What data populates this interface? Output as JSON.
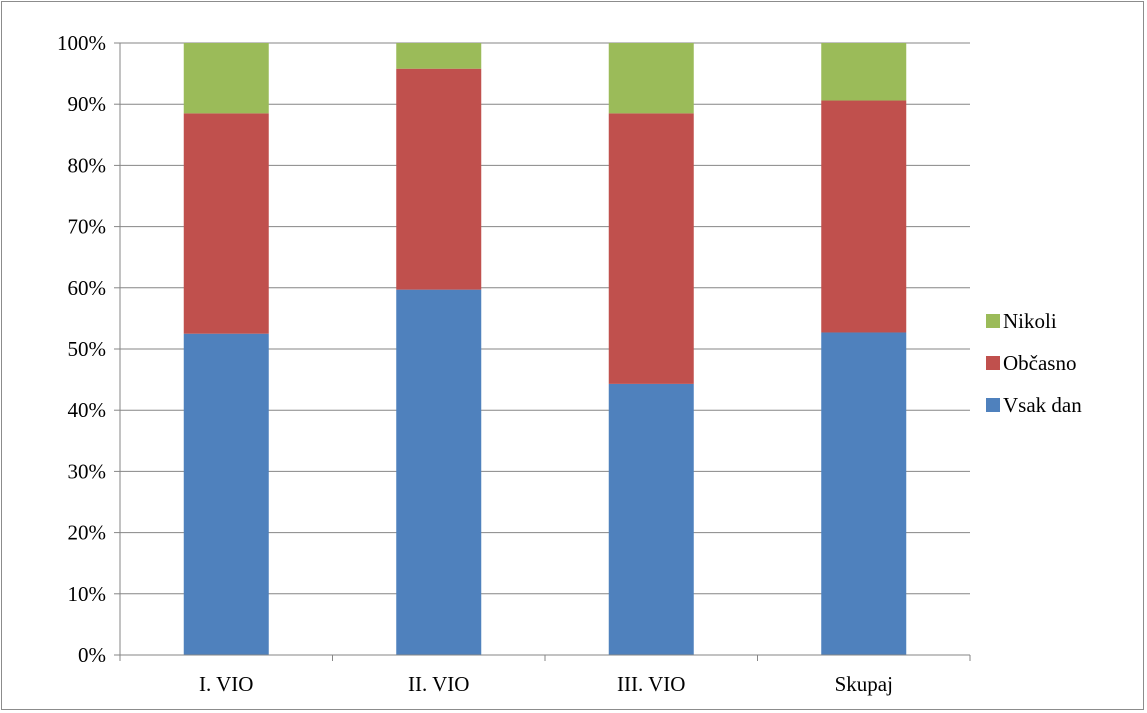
{
  "chart_data": {
    "type": "bar",
    "stacked": true,
    "percent_stacked": true,
    "categories": [
      "I. VIO",
      "II. VIO",
      "III. VIO",
      "Skupaj"
    ],
    "series": [
      {
        "name": "Vsak dan",
        "color": "#4f81bd",
        "values": [
          52.5,
          59.7,
          44.3,
          52.7
        ]
      },
      {
        "name": "Občasno",
        "color": "#c0504d",
        "values": [
          36.0,
          36.1,
          44.2,
          37.9
        ]
      },
      {
        "name": "Nikoli",
        "color": "#9bbb59",
        "values": [
          11.5,
          4.2,
          11.5,
          9.4
        ]
      }
    ],
    "y_ticks": [
      "0%",
      "10%",
      "20%",
      "30%",
      "40%",
      "50%",
      "60%",
      "70%",
      "80%",
      "90%",
      "100%"
    ],
    "ylim": [
      0,
      100
    ],
    "grid": true,
    "legend_position": "right",
    "legend_order": [
      "Nikoli",
      "Občasno",
      "Vsak dan"
    ],
    "title": "",
    "xlabel": "",
    "ylabel": ""
  }
}
